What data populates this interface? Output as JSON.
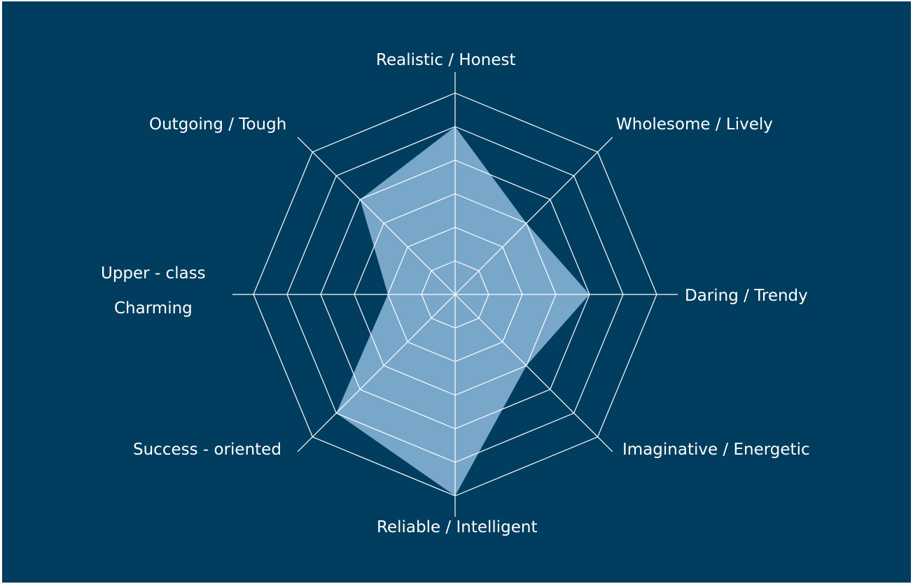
{
  "chart_data": {
    "type": "radar",
    "categories": [
      "Realistic / Honest",
      "Wholesome / Lively",
      "Daring / Trendy",
      "Imaginative / Energetic",
      "Reliable / Intelligent",
      "Success - oriented",
      "Upper - class Charming",
      "Outgoing / Tough"
    ],
    "label_lines": [
      [
        "Realistic / Honest"
      ],
      [
        "Wholesome / Lively"
      ],
      [
        "Daring / Trendy"
      ],
      [
        "Imaginative / Energetic"
      ],
      [
        "Reliable / Intelligent"
      ],
      [
        "Success - oriented"
      ],
      [
        "Upper - class",
        "Charming"
      ],
      [
        "Outgoing / Tough"
      ]
    ],
    "values": [
      5,
      3,
      4,
      3,
      6,
      5,
      2,
      4
    ],
    "rlim": [
      0,
      6
    ],
    "grid_levels": 6,
    "grid": true,
    "colors": {
      "background": "#003d5e",
      "fill": "#78a7ca",
      "grid": "#ffffff",
      "text": "#ffffff"
    }
  }
}
